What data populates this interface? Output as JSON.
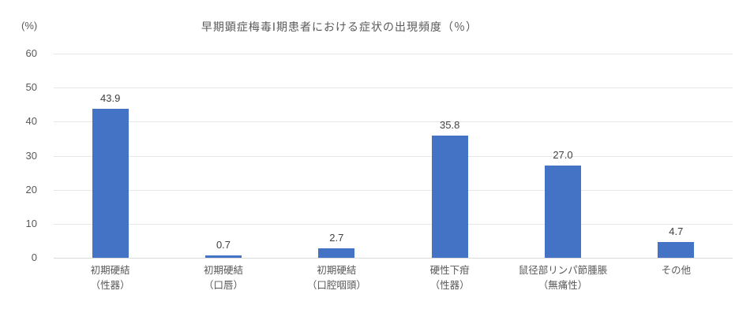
{
  "chart_data": {
    "type": "bar",
    "title": "早期顕症梅毒Ⅰ期患者における症状の出現頻度（％）",
    "unit_label": "(%)",
    "xlabel": "",
    "ylabel": "(%)",
    "categories": [
      "初期硬結\n（性器）",
      "初期硬結\n（口唇）",
      "初期硬結\n（口腔咽頭）",
      "硬性下疳\n（性器）",
      "鼠径部リンパ節腫脹\n（無痛性）",
      "その他"
    ],
    "values": [
      43.9,
      0.7,
      2.7,
      35.8,
      27.0,
      4.7
    ],
    "value_labels": [
      "43.9",
      "0.7",
      "2.7",
      "35.8",
      "27.0",
      "4.7"
    ],
    "ylim": [
      0,
      60
    ],
    "yticks": [
      0,
      10,
      20,
      30,
      40,
      50,
      60
    ],
    "grid": true,
    "legend": "none",
    "bar_color": "#4472C4",
    "gridline_color": "#E6E6E6",
    "axis_line_color": "#D9D9D9",
    "text_color": "#595959",
    "value_label_color": "#404040",
    "background_color": "#FFFFFF"
  }
}
